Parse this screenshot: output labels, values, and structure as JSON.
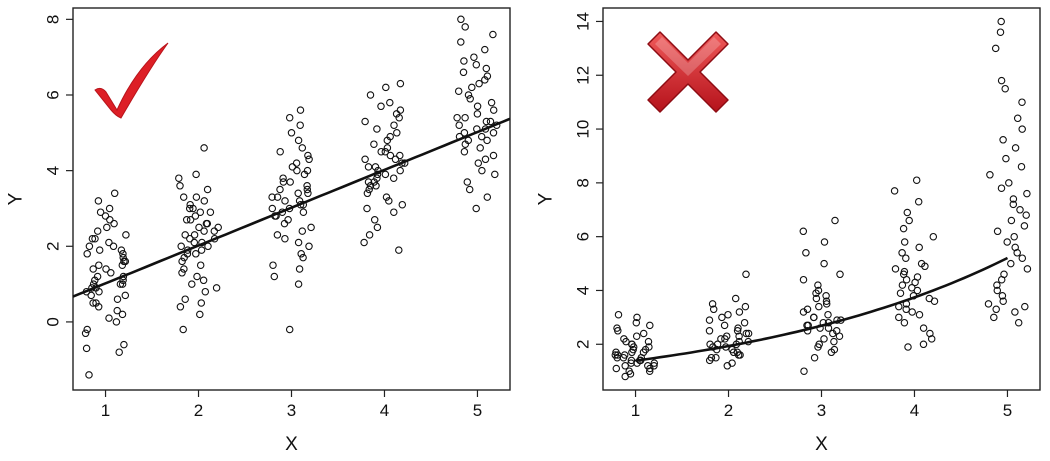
{
  "colors": {
    "frame": "#222222",
    "points": "#111111",
    "line": "#111111",
    "check": "#dd1f26",
    "cross_light": "#f05a5a",
    "cross_dark": "#b5121b"
  },
  "icons": {
    "left": "checkmark-icon",
    "right": "cross-icon"
  },
  "chart_data": [
    {
      "type": "scatter",
      "title": "",
      "xlabel": "X",
      "ylabel": "Y",
      "xlim": [
        0.65,
        5.35
      ],
      "ylim": [
        -1.8,
        8.3
      ],
      "xticks": [
        1,
        2,
        3,
        4,
        5
      ],
      "yticks": [
        0,
        2,
        4,
        6,
        8
      ],
      "grid": false,
      "badge": "check",
      "fit": {
        "kind": "linear",
        "intercept": 0.02,
        "slope": 1.0,
        "x_range": [
          0.65,
          5.35
        ]
      },
      "series": [
        {
          "values_by_x": [
            {
              "x": 1,
              "y": [
                -1.4,
                -0.8,
                -0.6,
                -0.7,
                -0.3,
                -0.2,
                0.0,
                0.1,
                0.2,
                0.3,
                0.4,
                0.5,
                0.5,
                0.6,
                0.7,
                0.7,
                0.8,
                0.8,
                0.9,
                0.9,
                1.0,
                1.0,
                1.0,
                1.1,
                1.1,
                1.2,
                1.2,
                1.3,
                1.4,
                1.4,
                1.5,
                1.5,
                1.6,
                1.6,
                1.7,
                1.8,
                1.8,
                1.9,
                1.9,
                2.0,
                2.0,
                2.1,
                2.2,
                2.2,
                2.3,
                2.4,
                2.5,
                2.6,
                2.7,
                2.8,
                2.9,
                3.0,
                3.2,
                3.4
              ]
            },
            {
              "x": 2,
              "y": [
                -0.2,
                0.2,
                0.4,
                0.5,
                0.6,
                0.8,
                0.9,
                1.0,
                1.1,
                1.2,
                1.3,
                1.4,
                1.5,
                1.6,
                1.7,
                1.8,
                1.8,
                1.9,
                1.9,
                2.0,
                2.0,
                2.1,
                2.1,
                2.2,
                2.2,
                2.3,
                2.3,
                2.4,
                2.4,
                2.5,
                2.5,
                2.6,
                2.6,
                2.7,
                2.7,
                2.8,
                2.9,
                2.9,
                3.0,
                3.0,
                3.1,
                3.2,
                3.3,
                3.3,
                3.5,
                3.6,
                3.8,
                3.9,
                4.6
              ]
            },
            {
              "x": 3,
              "y": [
                -0.2,
                1.0,
                1.2,
                1.4,
                1.5,
                1.7,
                1.8,
                2.0,
                2.1,
                2.2,
                2.3,
                2.4,
                2.5,
                2.6,
                2.7,
                2.8,
                2.8,
                2.9,
                2.9,
                3.0,
                3.0,
                3.1,
                3.1,
                3.2,
                3.2,
                3.3,
                3.3,
                3.4,
                3.4,
                3.5,
                3.5,
                3.6,
                3.7,
                3.7,
                3.8,
                3.9,
                4.0,
                4.0,
                4.1,
                4.2,
                4.3,
                4.4,
                4.5,
                4.6,
                4.8,
                5.0,
                5.2,
                5.4,
                5.6
              ]
            },
            {
              "x": 4,
              "y": [
                1.9,
                2.1,
                2.3,
                2.5,
                2.7,
                2.9,
                3.0,
                3.1,
                3.2,
                3.3,
                3.4,
                3.5,
                3.6,
                3.6,
                3.7,
                3.7,
                3.8,
                3.8,
                3.9,
                3.9,
                4.0,
                4.0,
                4.1,
                4.1,
                4.2,
                4.2,
                4.3,
                4.3,
                4.4,
                4.4,
                4.5,
                4.5,
                4.6,
                4.7,
                4.8,
                4.9,
                5.0,
                5.1,
                5.2,
                5.3,
                5.4,
                5.5,
                5.6,
                5.7,
                5.8,
                6.0,
                6.2,
                6.3
              ]
            },
            {
              "x": 5,
              "y": [
                3.0,
                3.3,
                3.5,
                3.7,
                3.9,
                4.0,
                4.2,
                4.3,
                4.4,
                4.5,
                4.6,
                4.7,
                4.8,
                4.8,
                4.9,
                4.9,
                5.0,
                5.0,
                5.1,
                5.1,
                5.2,
                5.2,
                5.3,
                5.3,
                5.4,
                5.4,
                5.5,
                5.6,
                5.7,
                5.8,
                5.9,
                6.0,
                6.1,
                6.2,
                6.3,
                6.4,
                6.5,
                6.6,
                6.7,
                6.8,
                6.9,
                7.0,
                7.2,
                7.4,
                7.6,
                7.8,
                8.0
              ]
            }
          ]
        }
      ]
    },
    {
      "type": "scatter",
      "title": "",
      "xlabel": "X",
      "ylabel": "Y",
      "xlim": [
        0.65,
        5.35
      ],
      "ylim": [
        0.3,
        14.5
      ],
      "xticks": [
        1,
        2,
        3,
        4,
        5
      ],
      "yticks": [
        2,
        4,
        6,
        8,
        10,
        12,
        14
      ],
      "grid": false,
      "badge": "cross",
      "fit": {
        "kind": "exponential",
        "a": 1.0,
        "b": 0.33,
        "x_range": [
          1.0,
          5.0
        ]
      },
      "series": [
        {
          "values_by_x": [
            {
              "x": 1,
              "y": [
                0.8,
                0.9,
                1.0,
                1.0,
                1.1,
                1.1,
                1.2,
                1.2,
                1.2,
                1.3,
                1.3,
                1.3,
                1.4,
                1.4,
                1.4,
                1.5,
                1.5,
                1.5,
                1.6,
                1.6,
                1.6,
                1.7,
                1.7,
                1.7,
                1.8,
                1.8,
                1.9,
                1.9,
                2.0,
                2.0,
                2.1,
                2.1,
                2.2,
                2.3,
                2.4,
                2.5,
                2.6,
                2.7,
                2.8,
                3.0,
                3.1
              ]
            },
            {
              "x": 2,
              "y": [
                1.2,
                1.3,
                1.4,
                1.5,
                1.5,
                1.6,
                1.6,
                1.7,
                1.7,
                1.8,
                1.8,
                1.9,
                1.9,
                2.0,
                2.0,
                2.0,
                2.1,
                2.1,
                2.2,
                2.2,
                2.3,
                2.3,
                2.4,
                2.4,
                2.5,
                2.5,
                2.6,
                2.7,
                2.8,
                2.9,
                3.0,
                3.1,
                3.2,
                3.3,
                3.4,
                3.5,
                3.7,
                4.6
              ]
            },
            {
              "x": 3,
              "y": [
                1.0,
                1.5,
                1.7,
                1.8,
                1.9,
                2.0,
                2.1,
                2.2,
                2.3,
                2.4,
                2.5,
                2.5,
                2.6,
                2.6,
                2.7,
                2.7,
                2.8,
                2.8,
                2.9,
                2.9,
                3.0,
                3.0,
                3.1,
                3.2,
                3.3,
                3.4,
                3.5,
                3.6,
                3.7,
                3.8,
                3.9,
                4.0,
                4.2,
                4.4,
                4.6,
                5.0,
                5.4,
                5.8,
                6.2,
                6.6
              ]
            },
            {
              "x": 4,
              "y": [
                1.9,
                2.0,
                2.2,
                2.4,
                2.6,
                2.8,
                3.0,
                3.1,
                3.2,
                3.3,
                3.4,
                3.5,
                3.6,
                3.7,
                3.8,
                3.9,
                4.0,
                4.1,
                4.2,
                4.3,
                4.4,
                4.5,
                4.6,
                4.7,
                4.8,
                4.9,
                5.0,
                5.2,
                5.4,
                5.6,
                5.8,
                6.0,
                6.3,
                6.6,
                6.9,
                7.3,
                7.7,
                8.1
              ]
            },
            {
              "x": 5,
              "y": [
                2.8,
                3.0,
                3.2,
                3.3,
                3.4,
                3.5,
                3.6,
                3.8,
                4.0,
                4.2,
                4.4,
                4.6,
                4.8,
                5.0,
                5.2,
                5.4,
                5.6,
                5.8,
                6.0,
                6.2,
                6.4,
                6.6,
                6.8,
                7.0,
                7.2,
                7.4,
                7.6,
                7.8,
                8.0,
                8.3,
                8.6,
                8.9,
                9.3,
                9.6,
                10.0,
                10.4,
                11.0,
                11.5,
                11.8,
                13.0,
                13.6,
                14.0
              ]
            }
          ]
        }
      ]
    }
  ]
}
